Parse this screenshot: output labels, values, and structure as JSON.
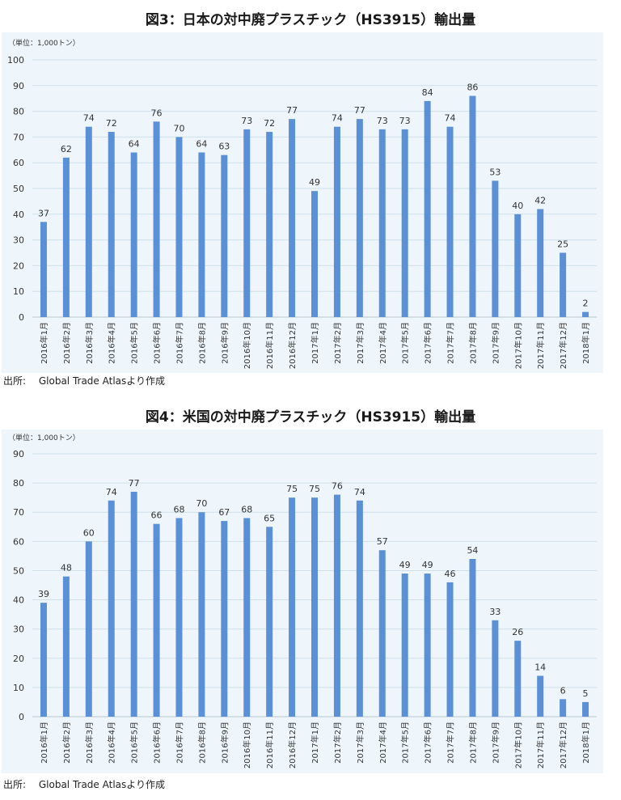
{
  "source_note": "出所:　 Global Trade Atlasより作成",
  "chart_data": [
    {
      "type": "bar",
      "title": "図3：日本の対中廃プラスチック（HS3915）輸出量",
      "unit_label": "（単位：1,000トン）",
      "xlabel": "",
      "ylabel": "",
      "ylim": [
        0,
        100
      ],
      "yticks": [
        0,
        10,
        20,
        30,
        40,
        50,
        60,
        70,
        80,
        90,
        100
      ],
      "grid": true,
      "bar_color": "#5b8fd6",
      "categories": [
        "2016年1月",
        "2016年2月",
        "2016年3月",
        "2016年4月",
        "2016年5月",
        "2016年6月",
        "2016年7月",
        "2016年8月",
        "2016年9月",
        "2016年10月",
        "2016年11月",
        "2016年12月",
        "2017年1月",
        "2017年2月",
        "2017年3月",
        "2017年4月",
        "2017年5月",
        "2017年6月",
        "2017年7月",
        "2017年8月",
        "2017年9月",
        "2017年10月",
        "2017年11月",
        "2017年12月",
        "2018年1月"
      ],
      "values": [
        37,
        62,
        74,
        72,
        64,
        76,
        70,
        64,
        63,
        73,
        72,
        77,
        49,
        74,
        77,
        73,
        73,
        84,
        74,
        86,
        53,
        40,
        42,
        25,
        2
      ]
    },
    {
      "type": "bar",
      "title": "図4：米国の対中廃プラスチック（HS3915）輸出量",
      "unit_label": "（単位：1,000トン）",
      "xlabel": "",
      "ylabel": "",
      "ylim": [
        0,
        90
      ],
      "yticks": [
        0,
        10,
        20,
        30,
        40,
        50,
        60,
        70,
        80,
        90
      ],
      "grid": true,
      "bar_color": "#5b8fd6",
      "categories": [
        "2016年1月",
        "2016年2月",
        "2016年3月",
        "2016年4月",
        "2016年5月",
        "2016年6月",
        "2016年7月",
        "2016年8月",
        "2016年9月",
        "2016年10月",
        "2016年11月",
        "2016年12月",
        "2017年1月",
        "2017年2月",
        "2017年3月",
        "2017年4月",
        "2017年5月",
        "2017年6月",
        "2017年7月",
        "2017年8月",
        "2017年9月",
        "2017年10月",
        "2017年11月",
        "2017年12月",
        "2018年1月"
      ],
      "values": [
        39,
        48,
        60,
        74,
        77,
        66,
        68,
        70,
        67,
        68,
        65,
        75,
        75,
        76,
        74,
        57,
        49,
        49,
        46,
        54,
        33,
        26,
        14,
        6,
        5
      ]
    }
  ]
}
